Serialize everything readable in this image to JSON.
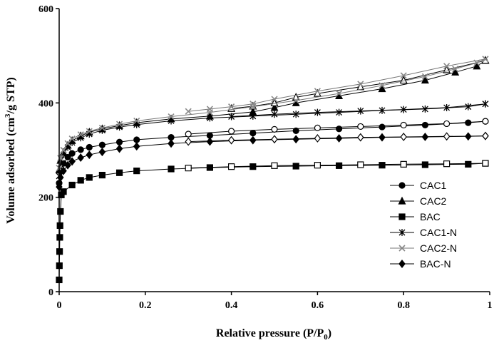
{
  "chart_data": {
    "type": "scatter",
    "xlabel": "Relative pressure (P/P",
    "xlabel_sub": "0",
    "xlabel_tail": ")",
    "ylabel": "Volume adsorbed (cm",
    "ylabel_sup": "3",
    "ylabel_tail": "/g STP)",
    "xlim": [
      0,
      1
    ],
    "ylim": [
      0,
      600
    ],
    "x_ticks": [
      {
        "value": 0,
        "label": "0"
      },
      {
        "value": 0.2,
        "label": "0.2"
      },
      {
        "value": 0.4,
        "label": "0.4"
      },
      {
        "value": 0.6,
        "label": "0.6"
      },
      {
        "value": 0.8,
        "label": "0.8"
      },
      {
        "value": 1,
        "label": "1"
      }
    ],
    "y_ticks": [
      {
        "value": 0,
        "label": "0"
      },
      {
        "value": 200,
        "label": "200"
      },
      {
        "value": 400,
        "label": "400"
      },
      {
        "value": 600,
        "label": "600"
      }
    ],
    "grid": false,
    "legend_position": "right",
    "series": [
      {
        "name": "CAC1",
        "marker": "circle",
        "adsorption": [
          [
            0.0,
            230
          ],
          [
            0.003,
            255
          ],
          [
            0.01,
            272
          ],
          [
            0.02,
            285
          ],
          [
            0.03,
            293
          ],
          [
            0.05,
            301
          ],
          [
            0.07,
            306
          ],
          [
            0.1,
            311
          ],
          [
            0.14,
            317
          ],
          [
            0.18,
            322
          ],
          [
            0.26,
            327
          ],
          [
            0.35,
            331
          ],
          [
            0.45,
            336
          ],
          [
            0.55,
            341
          ],
          [
            0.65,
            345
          ],
          [
            0.75,
            349
          ],
          [
            0.85,
            353
          ],
          [
            0.95,
            358
          ],
          [
            0.99,
            361
          ]
        ],
        "desorption": [
          [
            0.99,
            361
          ],
          [
            0.9,
            356
          ],
          [
            0.8,
            353
          ],
          [
            0.7,
            350
          ],
          [
            0.6,
            347
          ],
          [
            0.5,
            344
          ],
          [
            0.4,
            340
          ],
          [
            0.3,
            334
          ]
        ]
      },
      {
        "name": "CAC2",
        "marker": "triangle",
        "adsorption": [
          [
            0.0,
            258
          ],
          [
            0.003,
            278
          ],
          [
            0.01,
            295
          ],
          [
            0.02,
            310
          ],
          [
            0.03,
            320
          ],
          [
            0.05,
            330
          ],
          [
            0.07,
            338
          ],
          [
            0.1,
            345
          ],
          [
            0.14,
            352
          ],
          [
            0.18,
            358
          ],
          [
            0.26,
            366
          ],
          [
            0.35,
            372
          ],
          [
            0.45,
            381
          ],
          [
            0.5,
            390
          ],
          [
            0.55,
            400
          ],
          [
            0.65,
            415
          ],
          [
            0.75,
            430
          ],
          [
            0.85,
            448
          ],
          [
            0.92,
            465
          ],
          [
            0.97,
            478
          ],
          [
            0.99,
            490
          ]
        ],
        "desorption": [
          [
            0.99,
            490
          ],
          [
            0.9,
            470
          ],
          [
            0.8,
            448
          ],
          [
            0.7,
            434
          ],
          [
            0.6,
            420
          ],
          [
            0.55,
            412
          ],
          [
            0.5,
            400
          ],
          [
            0.45,
            393
          ],
          [
            0.4,
            388
          ]
        ]
      },
      {
        "name": "BAC",
        "marker": "square",
        "adsorption": [
          [
            0.0,
            25
          ],
          [
            0.0005,
            55
          ],
          [
            0.001,
            85
          ],
          [
            0.0015,
            115
          ],
          [
            0.002,
            140
          ],
          [
            0.003,
            170
          ],
          [
            0.005,
            205
          ],
          [
            0.01,
            212
          ],
          [
            0.03,
            226
          ],
          [
            0.05,
            236
          ],
          [
            0.07,
            242
          ],
          [
            0.1,
            247
          ],
          [
            0.14,
            252
          ],
          [
            0.18,
            256
          ],
          [
            0.26,
            260
          ],
          [
            0.35,
            263
          ],
          [
            0.45,
            265
          ],
          [
            0.55,
            266
          ],
          [
            0.65,
            267
          ],
          [
            0.75,
            268
          ],
          [
            0.85,
            269
          ],
          [
            0.95,
            270
          ],
          [
            0.99,
            272
          ]
        ],
        "desorption": [
          [
            0.99,
            272
          ],
          [
            0.9,
            271
          ],
          [
            0.8,
            270
          ],
          [
            0.7,
            269
          ],
          [
            0.6,
            268
          ],
          [
            0.5,
            267
          ],
          [
            0.4,
            265
          ],
          [
            0.3,
            262
          ]
        ]
      },
      {
        "name": "CAC1-N",
        "marker": "asterisk",
        "adsorption": [
          [
            0.0,
            245
          ],
          [
            0.003,
            270
          ],
          [
            0.01,
            290
          ],
          [
            0.02,
            306
          ],
          [
            0.03,
            316
          ],
          [
            0.05,
            326
          ],
          [
            0.07,
            334
          ],
          [
            0.1,
            342
          ],
          [
            0.14,
            349
          ],
          [
            0.18,
            354
          ],
          [
            0.26,
            362
          ],
          [
            0.35,
            368
          ],
          [
            0.45,
            372
          ],
          [
            0.55,
            376
          ],
          [
            0.65,
            380
          ],
          [
            0.75,
            384
          ],
          [
            0.85,
            387
          ],
          [
            0.95,
            392
          ],
          [
            0.99,
            398
          ]
        ],
        "desorption": [
          [
            0.99,
            398
          ],
          [
            0.9,
            390
          ],
          [
            0.8,
            386
          ],
          [
            0.7,
            383
          ],
          [
            0.6,
            380
          ],
          [
            0.5,
            376
          ],
          [
            0.4,
            371
          ]
        ]
      },
      {
        "name": "CAC2-N",
        "marker": "x",
        "adsorption": [
          [
            0.0,
            262
          ],
          [
            0.003,
            283
          ],
          [
            0.01,
            300
          ],
          [
            0.02,
            314
          ],
          [
            0.03,
            324
          ],
          [
            0.05,
            333
          ],
          [
            0.07,
            340
          ],
          [
            0.1,
            347
          ],
          [
            0.14,
            355
          ],
          [
            0.18,
            362
          ],
          [
            0.26,
            371
          ],
          [
            0.35,
            380
          ],
          [
            0.45,
            392
          ],
          [
            0.55,
            405
          ],
          [
            0.65,
            420
          ],
          [
            0.75,
            437
          ],
          [
            0.85,
            456
          ],
          [
            0.92,
            472
          ],
          [
            0.97,
            485
          ],
          [
            0.99,
            493
          ]
        ],
        "desorption": [
          [
            0.99,
            493
          ],
          [
            0.9,
            478
          ],
          [
            0.8,
            458
          ],
          [
            0.7,
            440
          ],
          [
            0.6,
            425
          ],
          [
            0.5,
            408
          ],
          [
            0.45,
            398
          ],
          [
            0.4,
            392
          ],
          [
            0.35,
            387
          ],
          [
            0.3,
            382
          ]
        ]
      },
      {
        "name": "BAC-N",
        "marker": "diamond",
        "adsorption": [
          [
            0.0,
            222
          ],
          [
            0.003,
            242
          ],
          [
            0.01,
            256
          ],
          [
            0.02,
            268
          ],
          [
            0.03,
            276
          ],
          [
            0.05,
            284
          ],
          [
            0.07,
            290
          ],
          [
            0.1,
            296
          ],
          [
            0.14,
            303
          ],
          [
            0.18,
            308
          ],
          [
            0.26,
            314
          ],
          [
            0.35,
            318
          ],
          [
            0.45,
            321
          ],
          [
            0.55,
            323
          ],
          [
            0.65,
            325
          ],
          [
            0.75,
            327
          ],
          [
            0.85,
            328
          ],
          [
            0.95,
            329
          ],
          [
            0.99,
            330
          ]
        ],
        "desorption": [
          [
            0.99,
            330
          ],
          [
            0.9,
            329
          ],
          [
            0.8,
            328
          ],
          [
            0.7,
            327
          ],
          [
            0.6,
            325
          ],
          [
            0.5,
            323
          ],
          [
            0.4,
            321
          ],
          [
            0.3,
            318
          ]
        ]
      }
    ]
  },
  "colors": {
    "line": "#000000",
    "cac2n_marker": "#888888",
    "background": "#ffffff"
  }
}
